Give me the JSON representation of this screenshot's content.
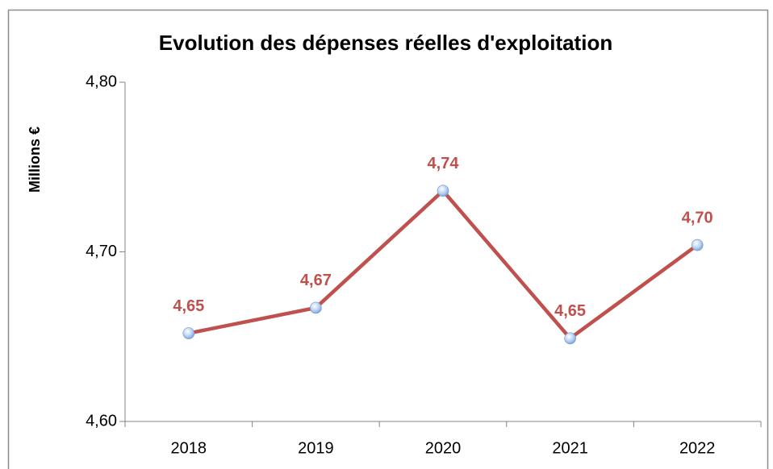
{
  "chart_data": {
    "type": "line",
    "title": "Evolution des dépenses réelles d'exploitation",
    "y_label": "Millions €",
    "categories": [
      "2018",
      "2019",
      "2020",
      "2021",
      "2022"
    ],
    "series": [
      {
        "name": "Dépenses réelles d'exploitation",
        "color": "#c0504d",
        "values": [
          4.652,
          4.667,
          4.736,
          4.649,
          4.704
        ],
        "value_labels": [
          "4,65",
          "4,67",
          "4,74",
          "4,65",
          "4,70"
        ]
      }
    ],
    "ylim": [
      4.6,
      4.8
    ],
    "yticks": [
      {
        "value": 4.6,
        "label": "4,60"
      },
      {
        "value": 4.7,
        "label": "4,70"
      },
      {
        "value": 4.8,
        "label": "4,80"
      }
    ],
    "grid": false
  }
}
